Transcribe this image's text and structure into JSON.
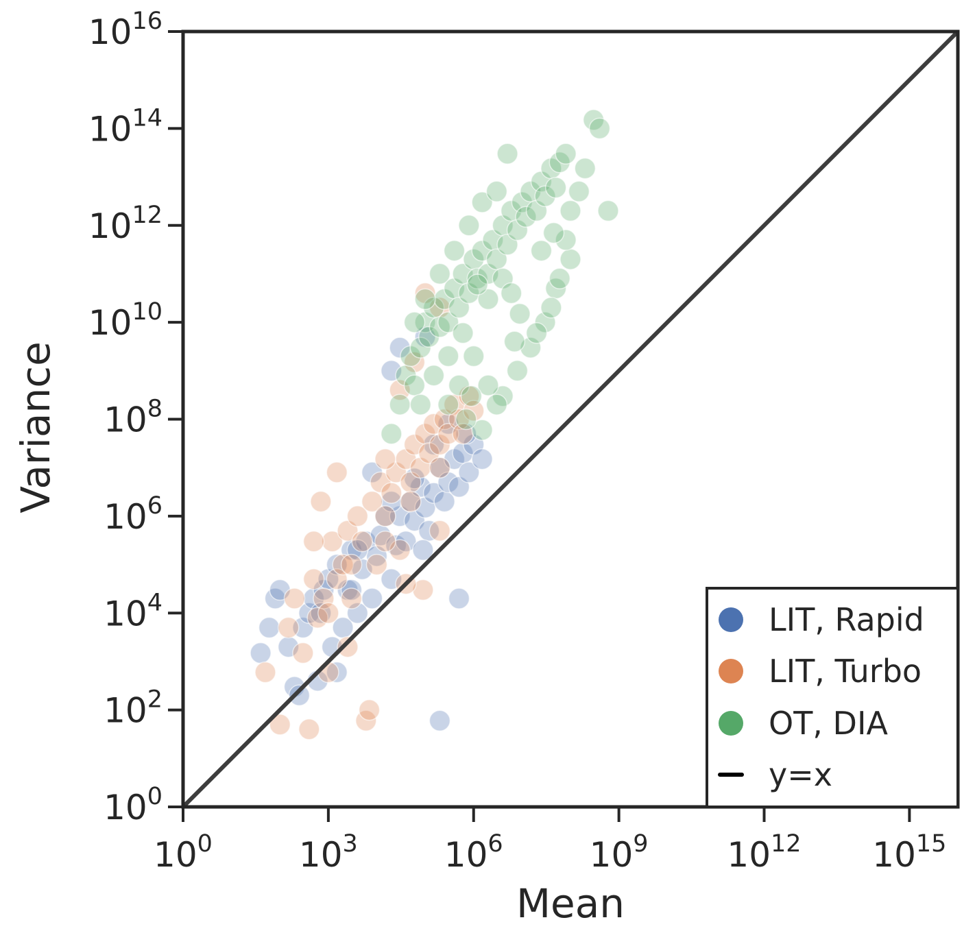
{
  "chart_data": {
    "type": "scatter",
    "title": "",
    "xlabel": "Mean",
    "ylabel": "Variance",
    "x_scale": "log",
    "y_scale": "log",
    "xlim": [
      1,
      1e+16
    ],
    "ylim": [
      1,
      1e+16
    ],
    "x_ticks": [
      {
        "base": "10",
        "exp": "0",
        "value": 1
      },
      {
        "base": "10",
        "exp": "3",
        "value": 1000.0
      },
      {
        "base": "10",
        "exp": "6",
        "value": 1000000.0
      },
      {
        "base": "10",
        "exp": "9",
        "value": 1000000000.0
      },
      {
        "base": "10",
        "exp": "12",
        "value": 1000000000000.0
      },
      {
        "base": "10",
        "exp": "15",
        "value": 1000000000000000.0
      }
    ],
    "y_ticks": [
      {
        "base": "10",
        "exp": "0",
        "value": 1
      },
      {
        "base": "10",
        "exp": "2",
        "value": 100.0
      },
      {
        "base": "10",
        "exp": "4",
        "value": 10000.0
      },
      {
        "base": "10",
        "exp": "6",
        "value": 1000000.0
      },
      {
        "base": "10",
        "exp": "8",
        "value": 100000000.0
      },
      {
        "base": "10",
        "exp": "10",
        "value": 10000000000.0
      },
      {
        "base": "10",
        "exp": "12",
        "value": 1000000000000.0
      },
      {
        "base": "10",
        "exp": "14",
        "value": 100000000000000.0
      },
      {
        "base": "10",
        "exp": "16",
        "value": 1e+16
      }
    ],
    "grid": false,
    "legend_position": "bottom-right",
    "reference_line": {
      "name": "y=x",
      "color": "#3d3d3d"
    },
    "series": [
      {
        "name": "LIT, Rapid",
        "color": "#4c72b0",
        "points": [
          [
            40,
            1500.0
          ],
          [
            60,
            5000.0
          ],
          [
            80,
            20000.0
          ],
          [
            100,
            30000.0
          ],
          [
            150,
            2000.0
          ],
          [
            200,
            300
          ],
          [
            250,
            200
          ],
          [
            300,
            5000.0
          ],
          [
            400,
            10000.0
          ],
          [
            500,
            20000.0
          ],
          [
            600,
            400
          ],
          [
            800,
            30000.0
          ],
          [
            1000,
            50000.0
          ],
          [
            1200,
            2000.0
          ],
          [
            1500,
            100000.0
          ],
          [
            2000,
            5000.0
          ],
          [
            2500,
            30000.0
          ],
          [
            3000,
            200000.0
          ],
          [
            4000,
            10000.0
          ],
          [
            5000,
            80000.0
          ],
          [
            6000,
            300000.0
          ],
          [
            8000,
            20000.0
          ],
          [
            10000.0,
            150000.0
          ],
          [
            12000.0,
            400000.0
          ],
          [
            15000.0,
            1000000.0
          ],
          [
            20000.0,
            50000.0
          ],
          [
            25000.0,
            250000.0
          ],
          [
            30000.0,
            1000000.0
          ],
          [
            40000.0,
            300000.0
          ],
          [
            50000.0,
            2000000.0
          ],
          [
            60000.0,
            800000.0
          ],
          [
            80000.0,
            4000000.0
          ],
          [
            100000.0,
            1500000.0
          ],
          [
            120000.0,
            500000.0
          ],
          [
            150000.0,
            3000000.0
          ],
          [
            200000.0,
            10000000.0
          ],
          [
            250000.0,
            2000000.0
          ],
          [
            300000.0,
            5000000.0
          ],
          [
            400000.0,
            15000000.0
          ],
          [
            500000.0,
            4000000.0
          ],
          [
            600000.0,
            20000000.0
          ],
          [
            800000.0,
            8000000.0
          ],
          [
            1000000.0,
            30000000.0
          ],
          [
            1500000.0,
            15000000.0
          ],
          [
            500000.0,
            20000.0
          ],
          [
            200000.0,
            60
          ],
          [
            30000.0,
            3000000000.0
          ],
          [
            20000.0,
            1000000000.0
          ],
          [
            100000.0,
            5000000000.0
          ],
          [
            8000.0,
            8000000.0
          ],
          [
            3000.0,
            30000.0
          ],
          [
            700,
            10000.0
          ],
          [
            1500,
            600
          ],
          [
            4000.0,
            200000.0
          ],
          [
            20000.0,
            2000000.0
          ],
          [
            60000.0,
            6000000.0
          ],
          [
            150000.0,
            30000000.0
          ],
          [
            300000.0,
            80000000.0
          ],
          [
            700000.0,
            50000000.0
          ],
          [
            90000.0,
            200000.0
          ]
        ]
      },
      {
        "name": "LIT, Turbo",
        "color": "#dd8452",
        "points": [
          [
            50,
            600
          ],
          [
            100,
            50
          ],
          [
            150,
            5000.0
          ],
          [
            200,
            20000.0
          ],
          [
            300,
            1500.0
          ],
          [
            400,
            40
          ],
          [
            500,
            50000.0
          ],
          [
            600,
            8000.0
          ],
          [
            800,
            20000.0
          ],
          [
            1000,
            600
          ],
          [
            1200,
            300000.0
          ],
          [
            1500,
            50000.0
          ],
          [
            2000,
            100000.0
          ],
          [
            2500,
            500000.0
          ],
          [
            3000,
            20000.0
          ],
          [
            4000,
            1000000.0
          ],
          [
            5000,
            300000.0
          ],
          [
            6000,
            60
          ],
          [
            8000,
            2000000.0
          ],
          [
            10000.0,
            100000.0
          ],
          [
            12000.0,
            5000000.0
          ],
          [
            15000.0,
            1000000.0
          ],
          [
            20000.0,
            3000000.0
          ],
          [
            25000.0,
            8000000.0
          ],
          [
            30000.0,
            200000.0
          ],
          [
            40000.0,
            15000000.0
          ],
          [
            50000.0,
            5000000.0
          ],
          [
            60000.0,
            30000000.0
          ],
          [
            80000.0,
            10000000.0
          ],
          [
            100000.0,
            50000000.0
          ],
          [
            120000.0,
            20000000.0
          ],
          [
            150000.0,
            80000000.0
          ],
          [
            200000.0,
            30000000.0
          ],
          [
            250000.0,
            100000000.0
          ],
          [
            300000.0,
            50000000.0
          ],
          [
            400000.0,
            200000000.0
          ],
          [
            500000.0,
            100000000.0
          ],
          [
            600000.0,
            50000000.0
          ],
          [
            800000.0,
            300000000.0
          ],
          [
            1000000.0,
            150000000.0
          ],
          [
            7000,
            100
          ],
          [
            2500,
            2000.0
          ],
          [
            1000.0,
            10000.0
          ],
          [
            3000.0,
            100000.0
          ],
          [
            15000.0,
            300000.0
          ],
          [
            50000.0,
            2000000.0
          ],
          [
            200000.0,
            10000000.0
          ],
          [
            100000.0,
            40000000000.0
          ],
          [
            200000.0,
            20000000000.0
          ],
          [
            60000.0,
            1500000000.0
          ],
          [
            30000.0,
            400000000.0
          ],
          [
            15000.0,
            15000000.0
          ],
          [
            500,
            300000.0
          ],
          [
            700,
            2000000.0
          ],
          [
            1500,
            8000000.0
          ],
          [
            90000.0,
            30000.0
          ],
          [
            200000.0,
            500000.0
          ],
          [
            40000.0,
            40000.0
          ]
        ]
      },
      {
        "name": "OT, DIA",
        "color": "#55a868",
        "points": [
          [
            20000.0,
            50000000.0
          ],
          [
            30000.0,
            200000000.0
          ],
          [
            40000.0,
            800000000.0
          ],
          [
            50000.0,
            2000000000.0
          ],
          [
            60000.0,
            500000000.0
          ],
          [
            80000.0,
            3000000000.0
          ],
          [
            100000.0,
            10000000000.0
          ],
          [
            120000.0,
            5000000000.0
          ],
          [
            150000.0,
            20000000000.0
          ],
          [
            200000.0,
            8000000000.0
          ],
          [
            250000.0,
            30000000000.0
          ],
          [
            300000.0,
            10000000000.0
          ],
          [
            400000.0,
            50000000000.0
          ],
          [
            500000.0,
            20000000000.0
          ],
          [
            600000.0,
            100000000000.0
          ],
          [
            800000.0,
            40000000000.0
          ],
          [
            1000000.0,
            200000000000.0
          ],
          [
            1200000.0,
            80000000000.0
          ],
          [
            1500000.0,
            300000000000.0
          ],
          [
            2000000.0,
            100000000000.0
          ],
          [
            2500000.0,
            500000000000.0
          ],
          [
            3000000.0,
            200000000000.0
          ],
          [
            4000000.0,
            1000000000000.0
          ],
          [
            5000000.0,
            400000000000.0
          ],
          [
            6000000.0,
            2000000000000.0
          ],
          [
            8000000.0,
            800000000000.0
          ],
          [
            10000000.0,
            3000000000000.0
          ],
          [
            12000000.0,
            1500000000000.0
          ],
          [
            15000000.0,
            5000000000000.0
          ],
          [
            20000000.0,
            2000000000000.0
          ],
          [
            25000000.0,
            8000000000000.0
          ],
          [
            30000000.0,
            4000000000000.0
          ],
          [
            40000000.0,
            15000000000000.0
          ],
          [
            50000000.0,
            6000000000000.0
          ],
          [
            60000000.0,
            20000000000000.0
          ],
          [
            80000000.0,
            30000000000000.0
          ],
          [
            100000000.0,
            2000000000000.0
          ],
          [
            150000000.0,
            5000000000000.0
          ],
          [
            200000000.0,
            15000000000000.0
          ],
          [
            300000000.0,
            150000000000000.0
          ],
          [
            400000000.0,
            100000000000000.0
          ],
          [
            600000000.0,
            2000000000000.0
          ],
          [
            100000000.0,
            200000000000.0
          ],
          [
            50000000.0,
            50000000000.0
          ],
          [
            30000000.0,
            10000000000.0
          ],
          [
            15000000.0,
            3000000000.0
          ],
          [
            8000000.0,
            1000000000.0
          ],
          [
            4000000.0,
            300000000.0
          ],
          [
            2000000.0,
            500000000.0
          ],
          [
            1000000.0,
            2000000000.0
          ],
          [
            500000.0,
            500000000.0
          ],
          [
            300000.0,
            200000000.0
          ],
          [
            150000.0,
            800000000.0
          ],
          [
            80000.0,
            200000000.0
          ],
          [
            60000.0,
            10000000000.0
          ],
          [
            100000.0,
            30000000000.0
          ],
          [
            200000.0,
            100000000000.0
          ],
          [
            400000.0,
            300000000000.0
          ],
          [
            800000.0,
            1000000000000.0
          ],
          [
            1500000.0,
            3000000000000.0
          ],
          [
            3000000.0,
            5000000000000.0
          ],
          [
            5000000.0,
            30000000000000.0
          ],
          [
            7000000.0,
            4000000000.0
          ],
          [
            9000000.0,
            15000000000.0
          ],
          [
            20000000.0,
            6000000000.0
          ],
          [
            40000000.0,
            20000000000.0
          ],
          [
            60000000.0,
            80000000000.0
          ],
          [
            80000000.0,
            500000000000.0
          ],
          [
            3000000.0,
            200000000.0
          ],
          [
            1500000.0,
            60000000.0
          ],
          [
            700000.0,
            100000000.0
          ],
          [
            2000000.0,
            30000000000.0
          ],
          [
            4000000.0,
            80000000000.0
          ],
          [
            600000.0,
            6000000000.0
          ],
          [
            300000.0,
            2000000000.0
          ],
          [
            1200000.0,
            60000000000.0
          ],
          [
            25000000.0,
            300000000000.0
          ],
          [
            45000000.0,
            700000000000.0
          ],
          [
            6000000.0,
            40000000000.0
          ],
          [
            900000.0,
            300000000.0
          ]
        ]
      }
    ]
  },
  "legend": {
    "items": [
      {
        "label": "LIT, Rapid",
        "color": "#4c72b0",
        "kind": "marker"
      },
      {
        "label": "LIT, Turbo",
        "color": "#dd8452",
        "kind": "marker"
      },
      {
        "label": "OT, DIA",
        "color": "#55a868",
        "kind": "marker"
      },
      {
        "label": "y=x",
        "color": "#000000",
        "kind": "line"
      }
    ]
  },
  "colors": {
    "axis": "#262626",
    "diagonal": "#3d3d3d"
  }
}
